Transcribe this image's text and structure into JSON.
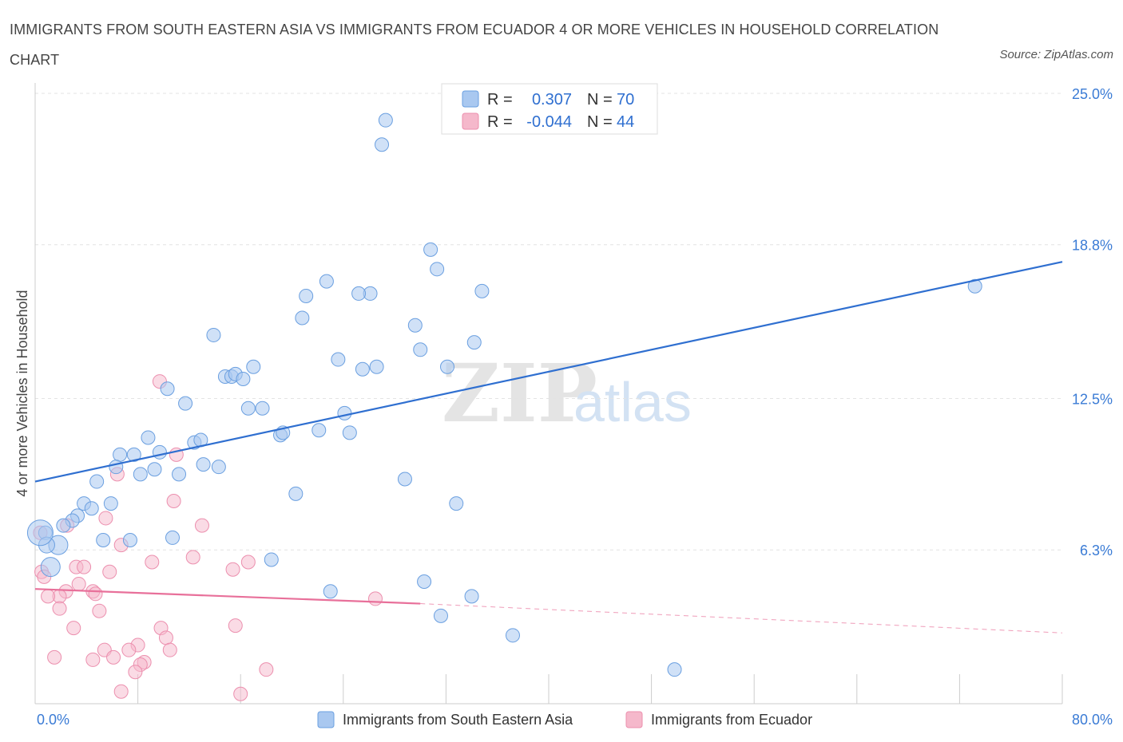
{
  "title": "IMMIGRANTS FROM SOUTH EASTERN ASIA VS IMMIGRANTS FROM ECUADOR 4 OR MORE VEHICLES IN HOUSEHOLD CORRELATION CHART",
  "source": "Source: ZipAtlas.com",
  "watermark": {
    "zip": "ZIP",
    "atlas": "atlas"
  },
  "legend": {
    "rows": [
      {
        "r_label": "R =",
        "r_value": "0.307",
        "n_label": "N =",
        "n_value": "70",
        "color": "#a9c8f0"
      },
      {
        "r_label": "R =",
        "r_value": "-0.044",
        "n_label": "N =",
        "n_value": "44",
        "color": "#f5b8cb"
      }
    ]
  },
  "colors": {
    "blue_fill": "#a9c8f0",
    "blue_stroke": "#6a9fe0",
    "blue_line": "#2f6fd0",
    "pink_fill": "#f5b8cb",
    "pink_stroke": "#ec8fae",
    "pink_line": "#e8709a",
    "tick": "#3a7bd5"
  },
  "chart_data": {
    "type": "scatter",
    "title": "IMMIGRANTS FROM SOUTH EASTERN ASIA VS IMMIGRANTS FROM ECUADOR 4 OR MORE VEHICLES IN HOUSEHOLD CORRELATION CHART",
    "ylabel": "4 or more Vehicles in Household",
    "xlabel": "",
    "xlim": [
      0,
      80
    ],
    "ylim": [
      0,
      25
    ],
    "x_tick_labels": [
      "0.0%",
      "80.0%"
    ],
    "y_ticks": [
      6.3,
      12.5,
      18.8,
      25.0
    ],
    "y_tick_labels": [
      "6.3%",
      "12.5%",
      "18.8%",
      "25.0%"
    ],
    "grid": true,
    "legend_position": "top-center",
    "series": [
      {
        "name": "Immigrants from South Eastern Asia",
        "r": 0.307,
        "n": 70,
        "trend": {
          "x": [
            0,
            80
          ],
          "y": [
            9.1,
            18.1
          ]
        },
        "points": [
          [
            27.3,
            23.9
          ],
          [
            27.0,
            22.9
          ],
          [
            30.8,
            18.6
          ],
          [
            31.3,
            17.8
          ],
          [
            22.7,
            17.3
          ],
          [
            21.1,
            16.7
          ],
          [
            26.1,
            16.8
          ],
          [
            25.2,
            16.8
          ],
          [
            34.8,
            16.9
          ],
          [
            73.2,
            17.1
          ],
          [
            20.8,
            15.8
          ],
          [
            29.6,
            15.5
          ],
          [
            13.9,
            15.1
          ],
          [
            34.2,
            14.8
          ],
          [
            30.0,
            14.5
          ],
          [
            23.6,
            14.1
          ],
          [
            32.1,
            13.8
          ],
          [
            25.5,
            13.7
          ],
          [
            26.6,
            13.8
          ],
          [
            17.0,
            13.8
          ],
          [
            14.8,
            13.4
          ],
          [
            15.3,
            13.4
          ],
          [
            15.6,
            13.5
          ],
          [
            16.2,
            13.3
          ],
          [
            10.3,
            12.9
          ],
          [
            11.7,
            12.3
          ],
          [
            16.6,
            12.1
          ],
          [
            17.7,
            12.1
          ],
          [
            24.1,
            11.9
          ],
          [
            22.1,
            11.2
          ],
          [
            19.1,
            11.0
          ],
          [
            19.3,
            11.1
          ],
          [
            24.5,
            11.1
          ],
          [
            8.8,
            10.9
          ],
          [
            12.4,
            10.7
          ],
          [
            12.9,
            10.8
          ],
          [
            6.6,
            10.2
          ],
          [
            7.7,
            10.2
          ],
          [
            9.7,
            10.3
          ],
          [
            6.3,
            9.7
          ],
          [
            8.2,
            9.4
          ],
          [
            9.3,
            9.6
          ],
          [
            11.2,
            9.4
          ],
          [
            13.1,
            9.8
          ],
          [
            14.3,
            9.7
          ],
          [
            4.8,
            9.1
          ],
          [
            28.8,
            9.2
          ],
          [
            20.3,
            8.6
          ],
          [
            32.8,
            8.2
          ],
          [
            3.8,
            8.2
          ],
          [
            5.9,
            8.2
          ],
          [
            4.4,
            8.0
          ],
          [
            3.3,
            7.7
          ],
          [
            2.9,
            7.5
          ],
          [
            2.2,
            7.3
          ],
          [
            5.3,
            6.7
          ],
          [
            7.4,
            6.7
          ],
          [
            10.7,
            6.8
          ],
          [
            0.8,
            7.0
          ],
          [
            1.8,
            6.5
          ],
          [
            0.9,
            6.5
          ],
          [
            18.4,
            5.9
          ],
          [
            1.2,
            5.6
          ],
          [
            30.3,
            5.0
          ],
          [
            23.0,
            4.6
          ],
          [
            34.0,
            4.4
          ],
          [
            31.6,
            3.6
          ],
          [
            37.2,
            2.8
          ],
          [
            49.8,
            1.4
          ],
          [
            0.4,
            7.0
          ]
        ]
      },
      {
        "name": "Immigrants from Ecuador",
        "r": -0.044,
        "n": 44,
        "trend": {
          "x": [
            0,
            30
          ],
          "y": [
            4.7,
            4.1
          ],
          "dashed_to": {
            "x": 80,
            "y": 2.9
          }
        },
        "points": [
          [
            9.7,
            13.2
          ],
          [
            11.0,
            10.2
          ],
          [
            6.4,
            9.4
          ],
          [
            10.8,
            8.3
          ],
          [
            5.5,
            7.6
          ],
          [
            13.0,
            7.3
          ],
          [
            2.5,
            7.3
          ],
          [
            0.4,
            7.0
          ],
          [
            6.7,
            6.5
          ],
          [
            12.3,
            6.0
          ],
          [
            9.1,
            5.8
          ],
          [
            16.6,
            5.8
          ],
          [
            3.2,
            5.6
          ],
          [
            3.8,
            5.6
          ],
          [
            15.4,
            5.5
          ],
          [
            5.8,
            5.4
          ],
          [
            0.5,
            5.4
          ],
          [
            3.4,
            4.9
          ],
          [
            2.4,
            4.6
          ],
          [
            4.5,
            4.6
          ],
          [
            1.9,
            4.4
          ],
          [
            4.7,
            4.5
          ],
          [
            1.0,
            4.4
          ],
          [
            26.5,
            4.3
          ],
          [
            1.9,
            3.9
          ],
          [
            5.0,
            3.8
          ],
          [
            15.6,
            3.2
          ],
          [
            3.0,
            3.1
          ],
          [
            9.8,
            3.1
          ],
          [
            10.2,
            2.7
          ],
          [
            8.0,
            2.4
          ],
          [
            5.4,
            2.2
          ],
          [
            7.3,
            2.2
          ],
          [
            10.5,
            2.2
          ],
          [
            1.5,
            1.9
          ],
          [
            4.5,
            1.8
          ],
          [
            6.1,
            1.9
          ],
          [
            8.5,
            1.7
          ],
          [
            8.2,
            1.6
          ],
          [
            7.8,
            1.3
          ],
          [
            18.0,
            1.4
          ],
          [
            6.7,
            0.5
          ],
          [
            16.0,
            0.4
          ],
          [
            0.7,
            5.2
          ]
        ]
      }
    ],
    "bottom_legend": [
      "Immigrants from South Eastern Asia",
      "Immigrants from Ecuador"
    ]
  }
}
